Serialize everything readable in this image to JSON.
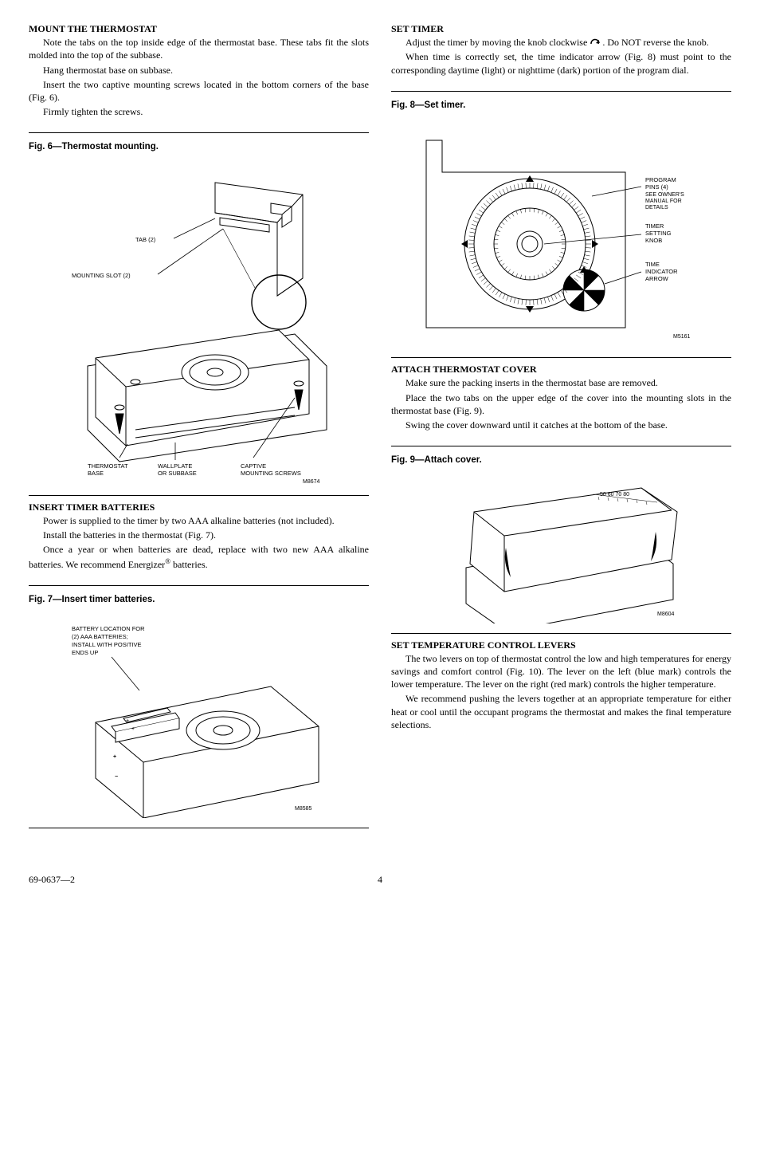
{
  "left": {
    "mount": {
      "heading": "MOUNT THE THERMOSTAT",
      "p1": "Note the tabs on the top inside edge of the thermostat base. These tabs fit the slots molded into the top of the subbase.",
      "p2": "Hang thermostat base on subbase.",
      "p3": "Insert the two captive mounting screws located in the bottom corners of the base (Fig. 6).",
      "p4": "Firmly tighten the screws."
    },
    "fig6": {
      "caption": "Fig. 6—Thermostat mounting.",
      "label_tab": "TAB (2)",
      "label_slot": "MOUNTING SLOT (2)",
      "label_tbase": "THERMOSTAT",
      "label_tbase2": "BASE",
      "label_wall1": "WALLPLATE",
      "label_wall2": "OR SUBBASE",
      "label_cap1": "CAPTIVE",
      "label_cap2": "MOUNTING SCREWS",
      "code": "M8674"
    },
    "insert": {
      "heading": "INSERT TIMER BATTERIES",
      "p1": "Power is supplied to the timer by two AAA alkaline batteries (not included).",
      "p2": "Install the batteries in the thermostat (Fig. 7).",
      "p3a": "Once a year or when batteries are dead, replace with two new AAA alkaline batteries. We recommend Energizer",
      "p3b": " batteries."
    },
    "fig7": {
      "caption": "Fig. 7—Insert timer batteries.",
      "label1": "BATTERY LOCATION FOR",
      "label2": "(2) AAA BATTERIES;",
      "label3": "INSTALL WITH POSITIVE",
      "label4": "ENDS UP",
      "code": "M8585"
    }
  },
  "right": {
    "timer": {
      "heading": "SET TIMER",
      "p1a": "Adjust the timer by moving the knob clockwise ",
      "p1b": ". Do NOT reverse the knob.",
      "p2": "When time is correctly set, the time indicator arrow (Fig. 8) must point to the corresponding daytime (light) or nighttime (dark) portion of the program dial."
    },
    "fig8": {
      "caption": "Fig. 8—Set timer.",
      "label_prog1": "PROGRAM",
      "label_prog2": "PINS (4)",
      "label_prog3": "SEE OWNER'S",
      "label_prog4": "MANUAL FOR",
      "label_prog5": "DETAILS",
      "label_knob1": "TIMER",
      "label_knob2": "SETTING",
      "label_knob3": "KNOB",
      "label_arrow1": "TIME",
      "label_arrow2": "INDICATOR",
      "label_arrow3": "ARROW",
      "code": "M5161"
    },
    "attach": {
      "heading": "ATTACH THERMOSTAT COVER",
      "p1": "Make sure the packing inserts in the thermostat base are removed.",
      "p2": "Place the two tabs on the upper edge of the cover into the mounting slots in the thermostat base (Fig. 9).",
      "p3": "Swing the cover downward until it catches at the bottom of the base."
    },
    "fig9": {
      "caption": "Fig. 9—Attach cover.",
      "code": "M8604"
    },
    "setlevers": {
      "heading": "SET TEMPERATURE CONTROL LEVERS",
      "p1": "The two levers on top of thermostat control the low and high temperatures for energy savings and comfort control (Fig. 10). The lever on the left (blue mark) controls the lower temperature. The lever on the right (red mark) controls the higher temperature.",
      "p2": "We recommend pushing the levers together at an appropriate temperature for either heat or cool until the occupant programs the thermostat and makes the final temperature selections."
    }
  },
  "footer": {
    "doc": "69-0637—2",
    "page": "4"
  },
  "colors": {
    "stroke": "#000000",
    "fill_white": "#ffffff",
    "fill_black": "#000000"
  }
}
